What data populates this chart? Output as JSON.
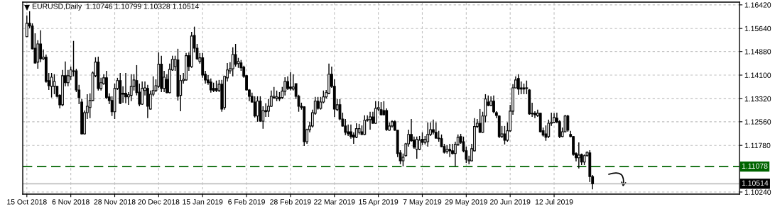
{
  "chart_data": {
    "type": "candlestick",
    "title": "EURUSD,Daily  1.10746 1.10799 1.10328 1.10514",
    "categories": [
      "15 Oct 2018",
      null,
      null,
      null,
      null,
      null,
      null,
      null,
      null,
      null,
      null,
      null,
      null,
      null,
      null,
      null,
      "6 Nov 2018",
      null,
      null,
      null,
      null,
      null,
      null,
      null,
      null,
      null,
      null,
      null,
      null,
      null,
      null,
      null,
      "28 Nov 2018",
      null,
      null,
      null,
      null,
      null,
      null,
      null,
      null,
      null,
      null,
      null,
      null,
      null,
      null,
      null,
      "20 Dec 2018",
      null,
      null,
      null,
      null,
      null,
      null,
      null,
      null,
      null,
      null,
      null,
      null,
      null,
      null,
      null,
      "15 Jan 2019",
      null,
      null,
      null,
      null,
      null,
      null,
      null,
      null,
      null,
      null,
      null,
      null,
      null,
      null,
      null,
      "6 Feb 2019",
      null,
      null,
      null,
      null,
      null,
      null,
      null,
      null,
      null,
      null,
      null,
      null,
      null,
      null,
      null,
      "28 Feb 2019",
      null,
      null,
      null,
      null,
      null,
      null,
      null,
      null,
      null,
      null,
      null,
      null,
      null,
      null,
      null,
      "22 Mar 2019",
      null,
      null,
      null,
      null,
      null,
      null,
      null,
      null,
      null,
      null,
      null,
      null,
      null,
      null,
      null,
      "15 Apr 2019",
      null,
      null,
      null,
      null,
      null,
      null,
      null,
      null,
      null,
      null,
      null,
      null,
      null,
      null,
      null,
      "7 May 2019",
      null,
      null,
      null,
      null,
      null,
      null,
      null,
      null,
      null,
      null,
      null,
      null,
      null,
      null,
      null,
      "29 May 2019",
      null,
      null,
      null,
      null,
      null,
      null,
      null,
      null,
      null,
      null,
      null,
      null,
      null,
      null,
      null,
      "20 Jun 2019",
      null,
      null,
      null,
      null,
      null,
      null,
      null,
      null,
      null,
      null,
      null,
      null,
      null,
      null,
      null,
      "12 Jul 2019",
      null,
      null,
      null,
      null,
      null,
      null,
      null,
      null,
      null,
      null,
      null,
      null,
      null,
      null,
      null,
      null,
      null,
      null,
      null,
      null,
      null,
      null,
      null,
      null,
      null,
      null,
      null,
      null,
      null,
      null,
      null,
      null,
      null,
      null,
      null,
      null,
      null,
      null,
      null,
      null,
      null,
      null,
      null,
      null,
      null,
      null,
      null,
      null,
      null,
      null,
      null,
      null,
      null,
      null,
      null,
      null,
      null,
      null,
      null,
      null,
      null,
      null,
      null,
      null,
      null,
      null,
      null
    ],
    "ohlc": [
      [
        1.1537,
        1.1607,
        1.1537,
        1.1581
      ],
      [
        1.1581,
        1.1621,
        1.1565,
        1.1572
      ],
      [
        1.1572,
        1.1581,
        1.1495,
        1.1497
      ],
      [
        1.1499,
        1.1548,
        1.1448,
        1.145
      ],
      [
        1.1453,
        1.1525,
        1.1431,
        1.1513
      ],
      [
        1.1513,
        1.1558,
        1.1453,
        1.1464
      ],
      [
        1.1464,
        1.1495,
        1.146,
        1.1469
      ],
      [
        1.1469,
        1.1478,
        1.1385,
        1.1389
      ],
      [
        1.1392,
        1.1417,
        1.1361,
        1.1375
      ],
      [
        1.1373,
        1.1417,
        1.1336,
        1.1403
      ],
      [
        1.1373,
        1.1413,
        1.1347,
        1.1389
      ],
      [
        1.1373,
        1.1373,
        1.1336,
        1.134
      ],
      [
        1.1343,
        1.1347,
        1.13,
        1.1312
      ],
      [
        1.1312,
        1.1427,
        1.1307,
        1.1408
      ],
      [
        1.1408,
        1.1455,
        1.1373,
        1.1385
      ],
      [
        1.1385,
        1.1427,
        1.1373,
        1.1408
      ],
      [
        1.1406,
        1.1438,
        1.1394,
        1.1427
      ],
      [
        1.1424,
        1.1523,
        1.1406,
        1.1422
      ],
      [
        1.1424,
        1.1431,
        1.1354,
        1.1361
      ],
      [
        1.1361,
        1.1378,
        1.1314,
        1.1336
      ],
      [
        1.1321,
        1.1331,
        1.1214,
        1.1216
      ],
      [
        1.1216,
        1.1293,
        1.1214,
        1.1286
      ],
      [
        1.1286,
        1.1347,
        1.1265,
        1.1307
      ],
      [
        1.1303,
        1.135,
        1.1268,
        1.1326
      ],
      [
        1.1326,
        1.1422,
        1.1324,
        1.1417
      ],
      [
        1.1408,
        1.1469,
        1.1403,
        1.1453
      ],
      [
        1.1453,
        1.1471,
        1.1359,
        1.1366
      ],
      [
        1.1366,
        1.1401,
        1.1359,
        1.1385
      ],
      [
        1.1382,
        1.1413,
        1.1378,
        1.1401
      ],
      [
        1.1401,
        1.1424,
        1.1331,
        1.1336
      ],
      [
        1.1338,
        1.135,
        1.1314,
        1.1326
      ],
      [
        1.1326,
        1.134,
        1.1275,
        1.1289
      ],
      [
        1.1289,
        1.1382,
        1.1265,
        1.1366
      ],
      [
        1.1366,
        1.1401,
        1.1361,
        1.1392
      ],
      [
        1.1392,
        1.1417,
        1.1314,
        1.1317
      ],
      [
        1.135,
        1.1373,
        1.1319,
        1.1347
      ],
      [
        1.135,
        1.1417,
        1.1317,
        1.1338
      ],
      [
        1.1338,
        1.1354,
        1.1312,
        1.1345
      ],
      [
        1.1343,
        1.1413,
        1.1324,
        1.1373
      ],
      [
        1.1373,
        1.1413,
        1.1359,
        1.1394
      ],
      [
        1.1392,
        1.1443,
        1.1343,
        1.1352
      ],
      [
        1.1354,
        1.1382,
        1.1307,
        1.1314
      ],
      [
        1.1314,
        1.1389,
        1.1312,
        1.1366
      ],
      [
        1.1359,
        1.1389,
        1.1343,
        1.1368
      ],
      [
        1.1366,
        1.1378,
        1.1268,
        1.1307
      ],
      [
        1.1298,
        1.1359,
        1.1296,
        1.1347
      ],
      [
        1.1347,
        1.1406,
        1.134,
        1.1359
      ],
      [
        1.1359,
        1.1396,
        1.1354,
        1.1375
      ],
      [
        1.1373,
        1.1485,
        1.1368,
        1.1446
      ],
      [
        1.1446,
        1.1474,
        1.1354,
        1.1366
      ],
      [
        1.1366,
        1.1424,
        1.1354,
        1.1403
      ],
      [
        1.1396,
        1.1413,
        1.135,
        1.1352
      ],
      [
        1.1352,
        1.1448,
        1.135,
        1.1429
      ],
      [
        1.1427,
        1.1474,
        1.1424,
        1.1462
      ],
      [
        1.1438,
        1.1474,
        1.1424,
        1.1462
      ],
      [
        1.146,
        1.1497,
        1.1326,
        1.134
      ],
      [
        1.1343,
        1.141,
        1.1291,
        1.1392
      ],
      [
        1.1392,
        1.1417,
        1.1382,
        1.1396
      ],
      [
        1.1394,
        1.1483,
        1.1392,
        1.1474
      ],
      [
        1.1474,
        1.1485,
        1.1424,
        1.1438
      ],
      [
        1.1438,
        1.1553,
        1.1434,
        1.1539
      ],
      [
        1.1541,
        1.157,
        1.1485,
        1.1499
      ],
      [
        1.1499,
        1.1513,
        1.146,
        1.1464
      ],
      [
        1.1455,
        1.1483,
        1.1448,
        1.1467
      ],
      [
        1.1467,
        1.1483,
        1.1401,
        1.141
      ],
      [
        1.1413,
        1.1424,
        1.1382,
        1.1394
      ],
      [
        1.1394,
        1.141,
        1.1378,
        1.1385
      ],
      [
        1.1387,
        1.1399,
        1.1352,
        1.1361
      ],
      [
        1.1366,
        1.1385,
        1.1354,
        1.1359
      ],
      [
        1.1366,
        1.1392,
        1.1354,
        1.1359
      ],
      [
        1.1359,
        1.1394,
        1.1354,
        1.138
      ],
      [
        1.138,
        1.1394,
        1.1289,
        1.1298
      ],
      [
        1.1303,
        1.1408,
        1.1296,
        1.1406
      ],
      [
        1.1401,
        1.145,
        1.1389,
        1.1427
      ],
      [
        1.1424,
        1.1453,
        1.1415,
        1.1431
      ],
      [
        1.1431,
        1.1502,
        1.1406,
        1.1478
      ],
      [
        1.1478,
        1.1513,
        1.1438,
        1.1446
      ],
      [
        1.1448,
        1.1467,
        1.1434,
        1.1455
      ],
      [
        1.145,
        1.146,
        1.1424,
        1.1434
      ],
      [
        1.1436,
        1.1441,
        1.1401,
        1.1406
      ],
      [
        1.1408,
        1.141,
        1.1359,
        1.1361
      ],
      [
        1.1361,
        1.1364,
        1.1324,
        1.134
      ],
      [
        1.134,
        1.1352,
        1.1319,
        1.1321
      ],
      [
        1.1321,
        1.134,
        1.127,
        1.1275
      ],
      [
        1.1275,
        1.134,
        1.1256,
        1.1324
      ],
      [
        1.1324,
        1.134,
        1.1256,
        1.1258
      ],
      [
        1.1258,
        1.1307,
        1.1233,
        1.1293
      ],
      [
        1.1293,
        1.1317,
        1.1272,
        1.1289
      ],
      [
        1.1291,
        1.1331,
        1.1272,
        1.1307
      ],
      [
        1.1307,
        1.1359,
        1.1305,
        1.134
      ],
      [
        1.1336,
        1.1371,
        1.1331,
        1.134
      ],
      [
        1.1333,
        1.1359,
        1.1324,
        1.1338
      ],
      [
        1.1336,
        1.1354,
        1.1324,
        1.1331
      ],
      [
        1.1336,
        1.1371,
        1.1331,
        1.1357
      ],
      [
        1.1357,
        1.1403,
        1.1343,
        1.1389
      ],
      [
        1.1389,
        1.1406,
        1.1361,
        1.1366
      ],
      [
        1.1371,
        1.142,
        1.1359,
        1.1366
      ],
      [
        1.1364,
        1.1413,
        1.1359,
        1.1371
      ],
      [
        1.1382,
        1.1382,
        1.1331,
        1.134
      ],
      [
        1.134,
        1.1345,
        1.1289,
        1.1307
      ],
      [
        1.1307,
        1.1319,
        1.1296,
        1.1303
      ],
      [
        1.1305,
        1.1307,
        1.1176,
        1.119
      ],
      [
        1.119,
        1.1233,
        1.1183,
        1.123
      ],
      [
        1.123,
        1.1256,
        1.1221,
        1.1242
      ],
      [
        1.1242,
        1.1296,
        1.1237,
        1.1286
      ],
      [
        1.1284,
        1.1338,
        1.1279,
        1.1324
      ],
      [
        1.1324,
        1.1338,
        1.1296,
        1.13
      ],
      [
        1.13,
        1.1338,
        1.1296,
        1.1321
      ],
      [
        1.1321,
        1.1359,
        1.1317,
        1.1338
      ],
      [
        1.1338,
        1.1361,
        1.1333,
        1.1352
      ],
      [
        1.135,
        1.1448,
        1.1347,
        1.1413
      ],
      [
        1.1413,
        1.1438,
        1.1368,
        1.1373
      ],
      [
        1.1373,
        1.1396,
        1.1272,
        1.1298
      ],
      [
        1.1296,
        1.1331,
        1.1291,
        1.1312
      ],
      [
        1.1312,
        1.1331,
        1.1261,
        1.1265
      ],
      [
        1.1265,
        1.1286,
        1.124,
        1.1242
      ],
      [
        1.1242,
        1.1265,
        1.1212,
        1.1221
      ],
      [
        1.1223,
        1.1247,
        1.1209,
        1.1216
      ],
      [
        1.1223,
        1.1247,
        1.12,
        1.1207
      ],
      [
        1.1212,
        1.1221,
        1.1183,
        1.1205
      ],
      [
        1.1205,
        1.1251,
        1.1202,
        1.1233
      ],
      [
        1.1221,
        1.1249,
        1.1214,
        1.1233
      ],
      [
        1.1223,
        1.1244,
        1.1212,
        1.1214
      ],
      [
        1.1214,
        1.1277,
        1.1212,
        1.1261
      ],
      [
        1.1261,
        1.1277,
        1.1256,
        1.1263
      ],
      [
        1.1263,
        1.1289,
        1.123,
        1.1272
      ],
      [
        1.1272,
        1.1289,
        1.1249,
        1.1251
      ],
      [
        1.1251,
        1.1324,
        1.1249,
        1.13
      ],
      [
        1.1298,
        1.1324,
        1.1291,
        1.1303
      ],
      [
        1.1296,
        1.1321,
        1.1277,
        1.1279
      ],
      [
        1.1293,
        1.1324,
        1.1277,
        1.1279
      ],
      [
        1.1293,
        1.13,
        1.1226,
        1.123
      ],
      [
        1.1228,
        1.1254,
        1.1226,
        1.1242
      ],
      [
        1.1242,
        1.1261,
        1.1237,
        1.1256
      ],
      [
        1.1256,
        1.1261,
        1.1226,
        1.1228
      ],
      [
        1.1228,
        1.1228,
        1.1139,
        1.1151
      ],
      [
        1.1153,
        1.1162,
        1.1116,
        1.1127
      ],
      [
        1.1127,
        1.1151,
        1.1109,
        1.1139
      ],
      [
        1.1144,
        1.1186,
        1.1141,
        1.1183
      ],
      [
        1.1183,
        1.123,
        1.1174,
        1.1214
      ],
      [
        1.1214,
        1.1265,
        1.119,
        1.1193
      ],
      [
        1.1195,
        1.1207,
        1.1167,
        1.1172
      ],
      [
        1.1165,
        1.1207,
        1.1134,
        1.1198
      ],
      [
        1.1165,
        1.1209,
        1.1162,
        1.1195
      ],
      [
        1.1198,
        1.1221,
        1.1179,
        1.1188
      ],
      [
        1.1188,
        1.1209,
        1.1181,
        1.1198
      ],
      [
        1.119,
        1.1254,
        1.1174,
        1.1214
      ],
      [
        1.1214,
        1.1254,
        1.1209,
        1.123
      ],
      [
        1.123,
        1.1263,
        1.1214,
        1.1221
      ],
      [
        1.1221,
        1.1254,
        1.12,
        1.1202
      ],
      [
        1.1202,
        1.1226,
        1.119,
        1.12
      ],
      [
        1.12,
        1.1214,
        1.1172,
        1.1174
      ],
      [
        1.1174,
        1.1183,
        1.1151,
        1.1155
      ],
      [
        1.1158,
        1.1179,
        1.1151,
        1.1165
      ],
      [
        1.1165,
        1.1183,
        1.1139,
        1.116
      ],
      [
        1.116,
        1.1183,
        1.1148,
        1.1151
      ],
      [
        1.1151,
        1.119,
        1.1109,
        1.1181
      ],
      [
        1.1181,
        1.1214,
        1.1176,
        1.1205
      ],
      [
        1.1207,
        1.1216,
        1.1183,
        1.1188
      ],
      [
        1.119,
        1.1207,
        1.1155,
        1.116
      ],
      [
        1.116,
        1.1174,
        1.112,
        1.1132
      ],
      [
        1.1127,
        1.1144,
        1.1116,
        1.113
      ],
      [
        1.1127,
        1.1183,
        1.1125,
        1.1167
      ],
      [
        1.116,
        1.1268,
        1.1158,
        1.124
      ],
      [
        1.124,
        1.1265,
        1.1235,
        1.1251
      ],
      [
        1.1251,
        1.1298,
        1.1219,
        1.1221
      ],
      [
        1.1221,
        1.1289,
        1.1219,
        1.1275
      ],
      [
        1.1275,
        1.1347,
        1.1254,
        1.1331
      ],
      [
        1.1321,
        1.1343,
        1.1307,
        1.131
      ],
      [
        1.131,
        1.134,
        1.1307,
        1.1324
      ],
      [
        1.1324,
        1.1343,
        1.1284,
        1.1289
      ],
      [
        1.1286,
        1.1291,
        1.1268,
        1.1277
      ],
      [
        1.1275,
        1.1277,
        1.1202,
        1.1207
      ],
      [
        1.1207,
        1.1242,
        1.1202,
        1.1216
      ],
      [
        1.1216,
        1.1242,
        1.1181,
        1.1195
      ],
      [
        1.1195,
        1.1254,
        1.119,
        1.1226
      ],
      [
        1.1226,
        1.1312,
        1.1223,
        1.1291
      ],
      [
        1.1291,
        1.138,
        1.1279,
        1.1368
      ],
      [
        1.1368,
        1.1406,
        1.1366,
        1.1394
      ],
      [
        1.1399,
        1.1413,
        1.1345,
        1.1364
      ],
      [
        1.1368,
        1.1389,
        1.1347,
        1.1364
      ],
      [
        1.1368,
        1.1382,
        1.1347,
        1.1364
      ],
      [
        1.1366,
        1.1392,
        1.1347,
        1.1368
      ],
      [
        1.1361,
        1.1364,
        1.1279,
        1.1282
      ],
      [
        1.1284,
        1.1319,
        1.1272,
        1.1282
      ],
      [
        1.1284,
        1.1291,
        1.1268,
        1.1279
      ],
      [
        1.1277,
        1.1296,
        1.1272,
        1.1284
      ],
      [
        1.1284,
        1.1286,
        1.1221,
        1.1223
      ],
      [
        1.1226,
        1.1237,
        1.1207,
        1.1212
      ],
      [
        1.1216,
        1.1244,
        1.1193,
        1.1205
      ],
      [
        1.1207,
        1.1263,
        1.1202,
        1.1251
      ],
      [
        1.1251,
        1.1286,
        1.1242,
        1.1254
      ],
      [
        1.1254,
        1.1284,
        1.1251,
        1.127
      ],
      [
        1.1268,
        1.1286,
        1.1251,
        1.1256
      ],
      [
        1.1256,
        1.1261,
        1.1202,
        1.1207
      ],
      [
        1.1207,
        1.1237,
        1.1205,
        1.1223
      ],
      [
        1.1223,
        1.1279,
        1.1221,
        1.1275
      ],
      [
        1.1275,
        1.1279,
        1.1223,
        1.1228
      ],
      [
        1.1214,
        1.1226,
        1.1205,
        1.1207
      ],
      [
        1.1207,
        1.1209,
        1.1144,
        1.1148
      ],
      [
        1.1151,
        1.1155,
        1.1125,
        1.1137
      ],
      [
        1.1137,
        1.1188,
        1.1102,
        1.1146
      ],
      [
        1.1148,
        1.1151,
        1.1113,
        1.1123
      ],
      [
        1.1123,
        1.1148,
        1.1113,
        1.1144
      ],
      [
        1.1144,
        1.1158,
        1.1141,
        1.1155
      ],
      [
        1.1153,
        1.1162,
        1.1057,
        1.1075
      ],
      [
        1.10746,
        1.10799,
        1.10328,
        1.10514
      ],
      null,
      null,
      null,
      null,
      null,
      null,
      null,
      null,
      null,
      null,
      null,
      null,
      null,
      null,
      null,
      null,
      null,
      null,
      null,
      null,
      null,
      null,
      null,
      null,
      null,
      null,
      null,
      null,
      null,
      null,
      null,
      null,
      null,
      null,
      null,
      null,
      null,
      null,
      null,
      null,
      null,
      null,
      null,
      null,
      null,
      null,
      null,
      null,
      null,
      null,
      null,
      null,
      null
    ],
    "ylim": [
      1.1017,
      1.1651
    ],
    "yticks": [
      {
        "value": 1.1642,
        "label": "1.16420"
      },
      {
        "value": 1.1564,
        "label": "1.15640"
      },
      {
        "value": 1.1488,
        "label": "1.14880"
      },
      {
        "value": 1.141,
        "label": "1.14100"
      },
      {
        "value": 1.1332,
        "label": "1.13320"
      },
      {
        "value": 1.1256,
        "label": "1.12560"
      },
      {
        "value": 1.1178,
        "label": "1.11780"
      },
      {
        "value": 1.1024,
        "label": "1.10240"
      }
    ],
    "ref_lines": [
      {
        "axis": "y",
        "value": 1.11078,
        "label": "1.11078",
        "color": "#006400",
        "line_style": "dashed"
      },
      {
        "axis": "y",
        "value": 1.10514,
        "label": "1.10514",
        "color": "#c0c0c0",
        "line_style": "solid"
      }
    ],
    "grid": true
  }
}
